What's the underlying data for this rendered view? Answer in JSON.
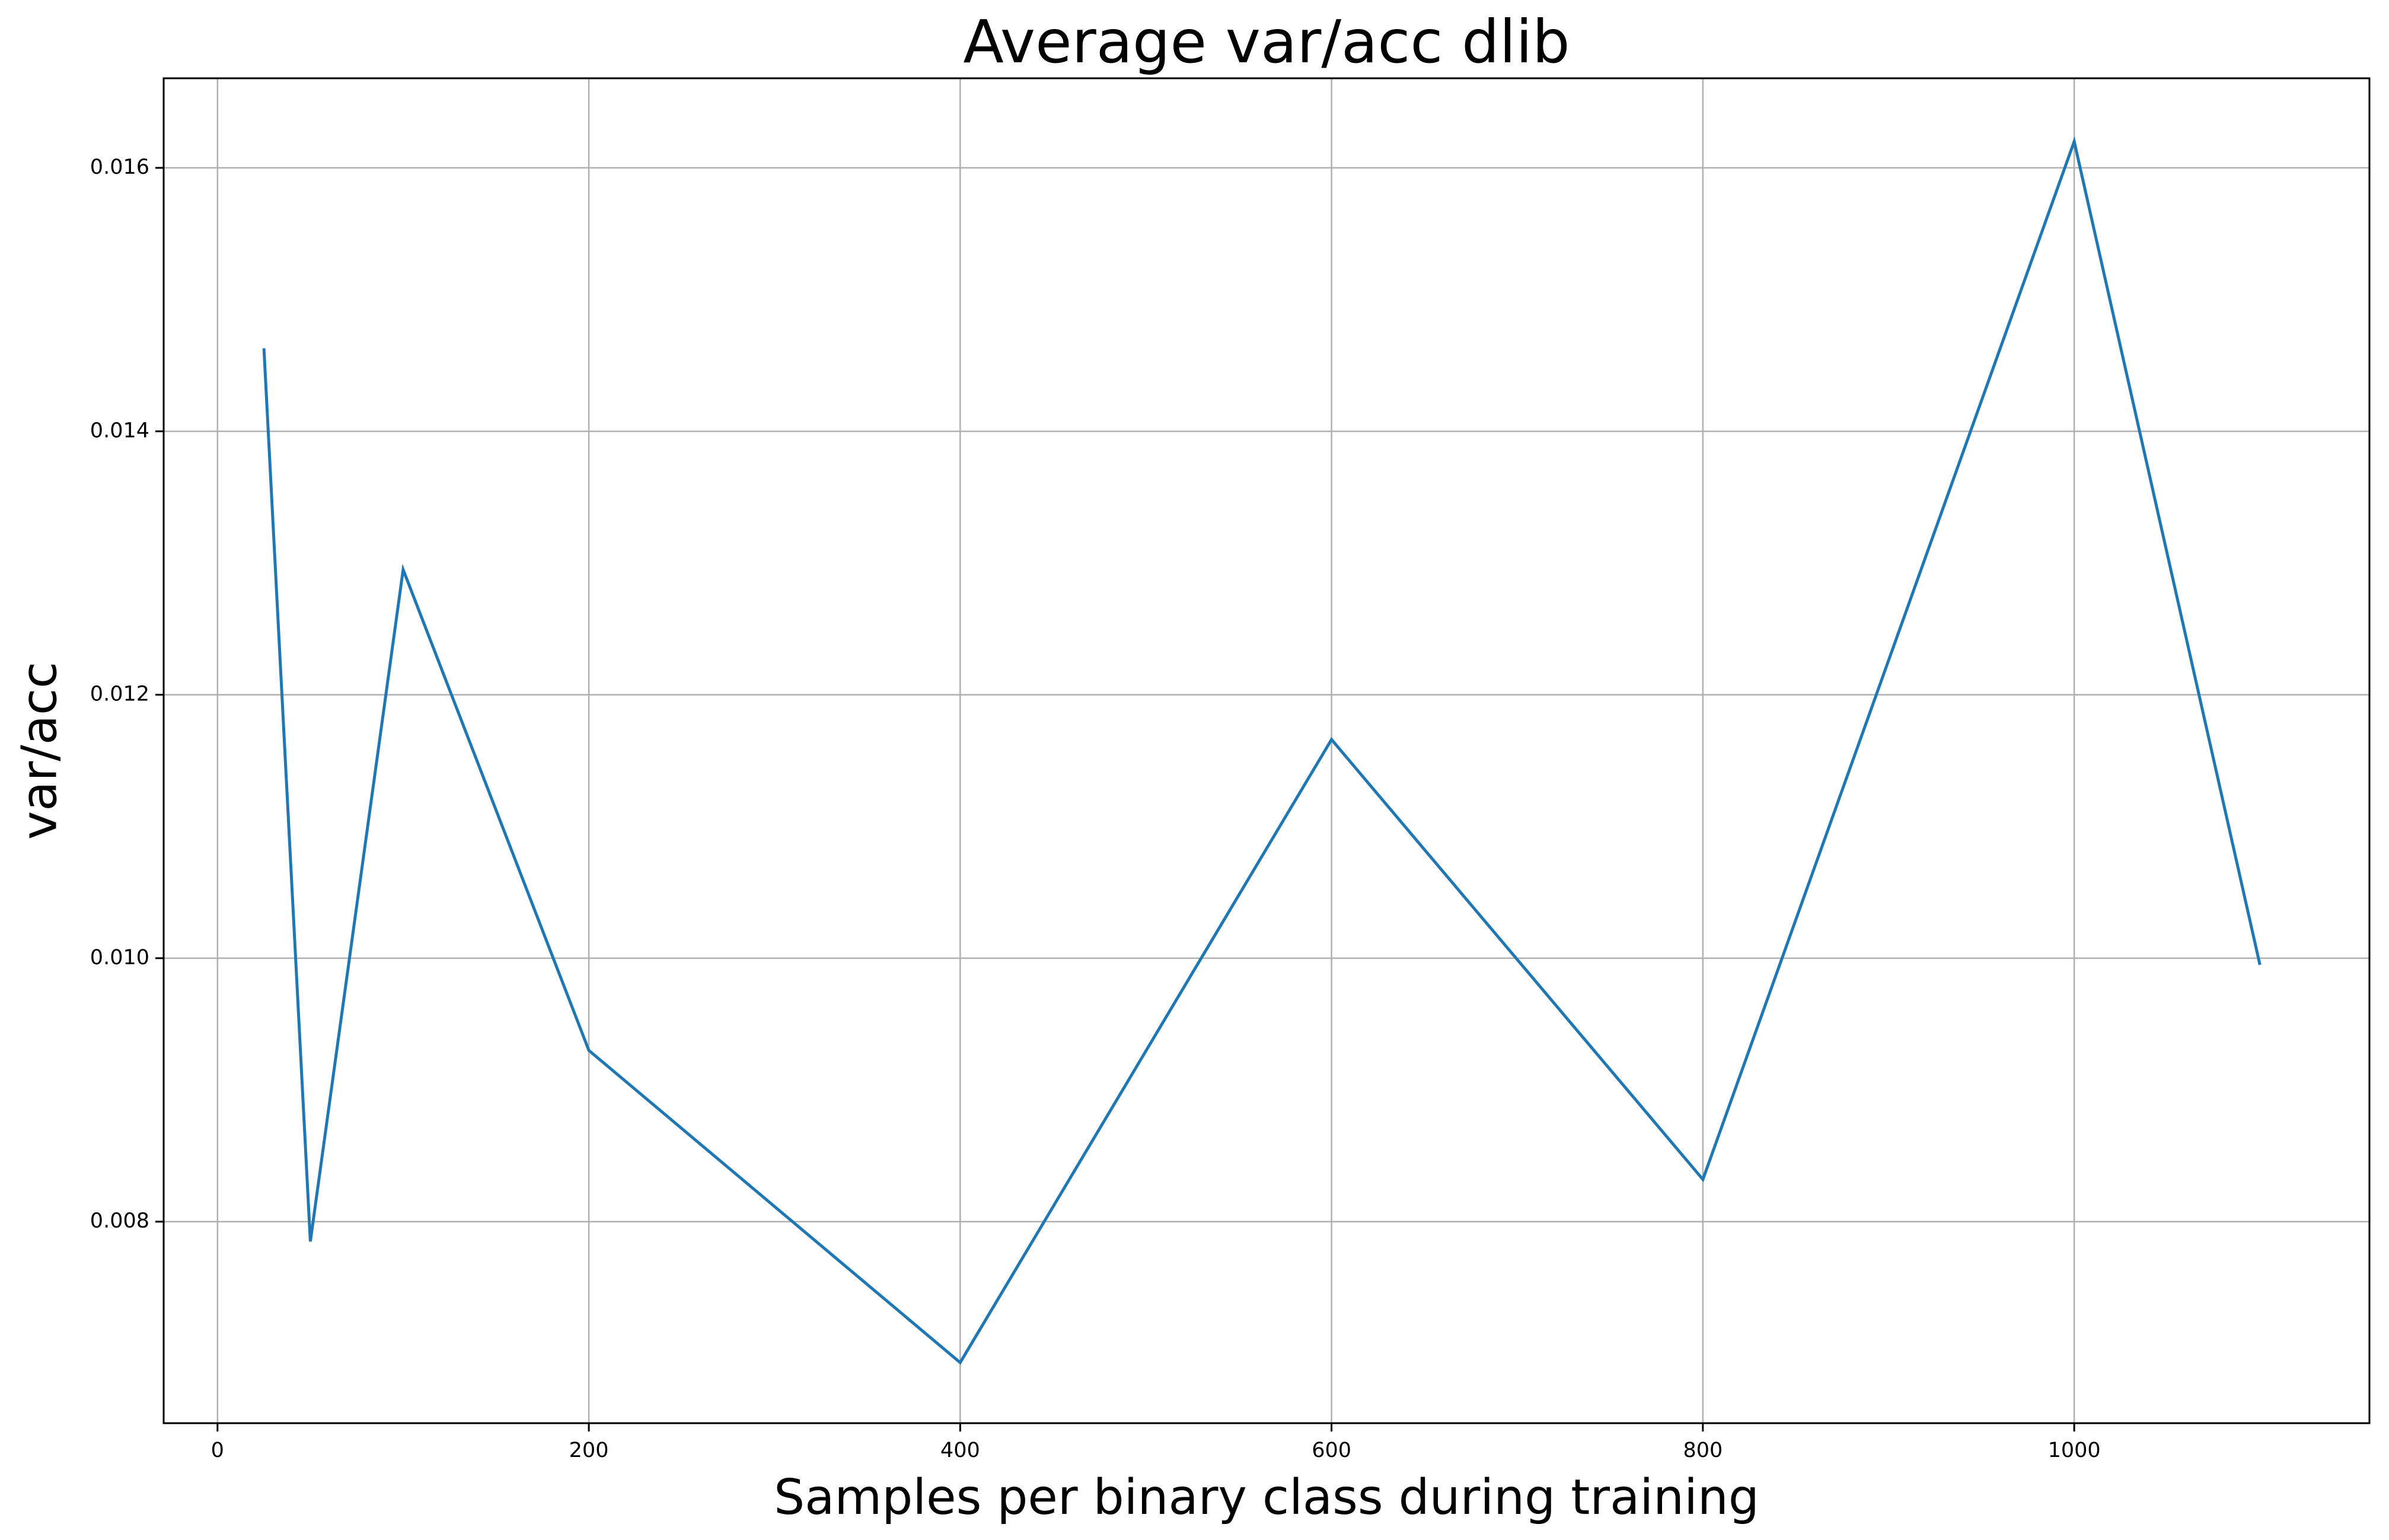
{
  "chart_data": {
    "type": "line",
    "title": "Average var/acc dlib",
    "xlabel": "Samples per binary class during training",
    "ylabel": "var/acc",
    "xlim": [
      -29,
      1159
    ],
    "ylim": [
      0.00647,
      0.01668
    ],
    "xticks": [
      0,
      200,
      400,
      600,
      800,
      1000
    ],
    "xtick_labels": [
      "0",
      "200",
      "400",
      "600",
      "800",
      "1000"
    ],
    "yticks": [
      0.008,
      0.01,
      0.012,
      0.014,
      0.016
    ],
    "ytick_labels": [
      "0.008",
      "0.010",
      "0.012",
      "0.014",
      "0.016"
    ],
    "grid": true,
    "series": [
      {
        "color": "#1f77b4",
        "x": [
          25,
          50,
          100,
          200,
          400,
          600,
          800,
          1000,
          1100
        ],
        "y": [
          0.01463,
          0.00785,
          0.01295,
          0.0093,
          0.00693,
          0.01166,
          0.00832,
          0.0162,
          0.00995
        ]
      }
    ]
  }
}
